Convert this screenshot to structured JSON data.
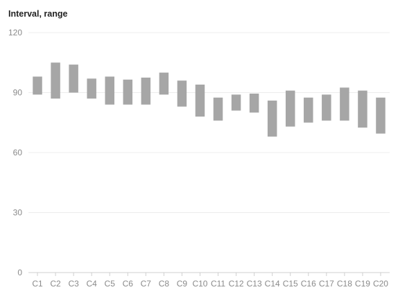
{
  "chart_data": {
    "type": "bar",
    "subtype": "floating-range",
    "title": "Interval, range",
    "xlabel": "",
    "ylabel": "",
    "ylim": [
      0,
      120
    ],
    "yticks": [
      0,
      30,
      60,
      90,
      120
    ],
    "grid": true,
    "legend": "none",
    "bar_color": "#a6a6a6",
    "categories": [
      "C1",
      "C2",
      "C3",
      "C4",
      "C5",
      "C6",
      "C7",
      "C8",
      "C9",
      "C10",
      "C11",
      "C12",
      "C13",
      "C14",
      "C15",
      "C16",
      "C17",
      "C18",
      "C19",
      "C20"
    ],
    "ranges": [
      [
        89,
        98
      ],
      [
        87,
        105
      ],
      [
        90,
        104
      ],
      [
        87,
        97
      ],
      [
        84,
        98
      ],
      [
        84,
        96.5
      ],
      [
        84,
        97.5
      ],
      [
        89,
        100
      ],
      [
        83,
        96
      ],
      [
        78,
        94
      ],
      [
        76,
        87.5
      ],
      [
        81,
        89
      ],
      [
        80,
        89.5
      ],
      [
        68,
        86
      ],
      [
        73,
        91
      ],
      [
        75,
        87.5
      ],
      [
        76,
        89
      ],
      [
        76,
        92.5
      ],
      [
        72.5,
        91
      ],
      [
        69.5,
        87.5
      ]
    ]
  }
}
